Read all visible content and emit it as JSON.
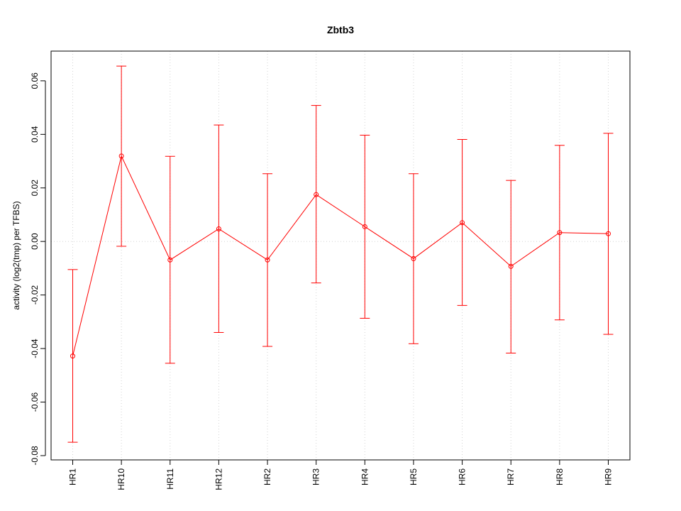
{
  "chart_data": {
    "type": "line",
    "title": "Zbtb3",
    "xlabel": "",
    "ylabel": "activity (log2(tmp) per TFBS)",
    "categories": [
      "HR1",
      "HR10",
      "HR11",
      "HR12",
      "HR2",
      "HR3",
      "HR4",
      "HR5",
      "HR6",
      "HR7",
      "HR8",
      "HR9"
    ],
    "series": [
      {
        "values": [
          -0.0428,
          0.0319,
          -0.0069,
          0.0047,
          -0.0069,
          0.0175,
          0.0055,
          -0.0064,
          0.007,
          -0.0093,
          0.0033,
          0.0029
        ],
        "upper": [
          -0.0105,
          0.0655,
          0.0318,
          0.0435,
          0.0253,
          0.0508,
          0.0397,
          0.0253,
          0.0381,
          0.0228,
          0.0359,
          0.0404
        ],
        "lower": [
          -0.075,
          -0.0018,
          -0.0455,
          -0.034,
          -0.0392,
          -0.0155,
          -0.0287,
          -0.0382,
          -0.0239,
          -0.0417,
          -0.0293,
          -0.0347
        ]
      }
    ],
    "yticks": [
      "-0.08",
      "-0.06",
      "-0.04",
      "-0.02",
      "0.00",
      "0.02",
      "0.04",
      "0.06"
    ],
    "ylim": [
      -0.0816,
      0.0711
    ],
    "grid": true,
    "color": "#ff0000",
    "grid_color": "#d3d3d3"
  }
}
